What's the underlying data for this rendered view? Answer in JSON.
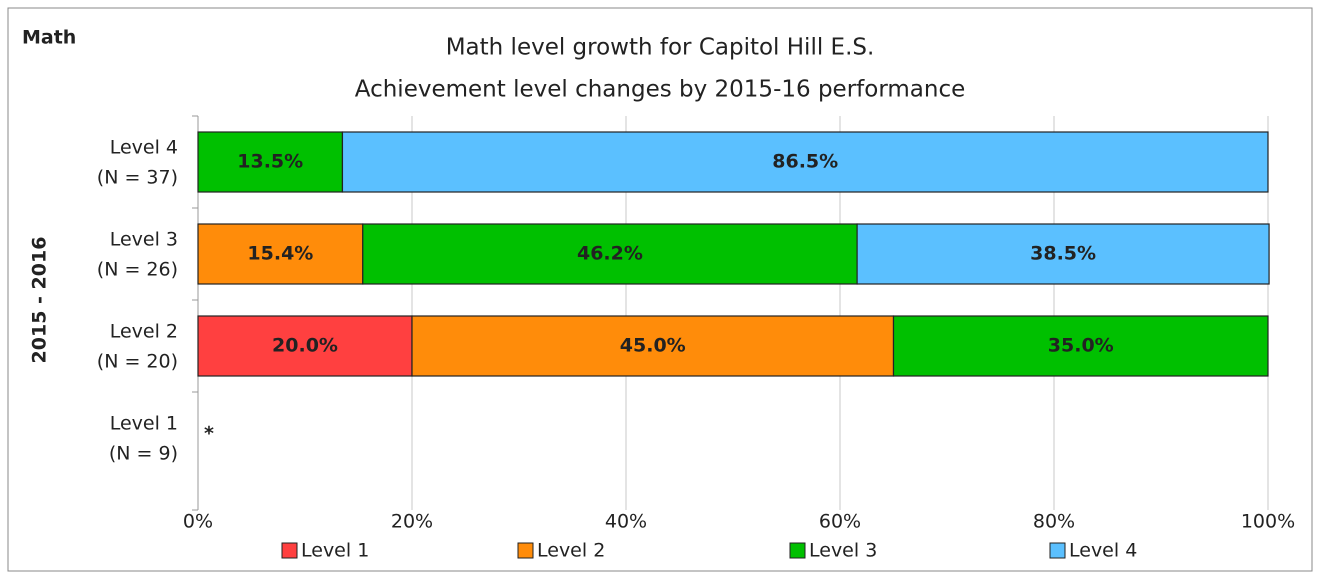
{
  "chart_data": {
    "type": "stacked-barh",
    "panel_label": "Math",
    "title": [
      "Math level growth for Capitol Hill E.S.",
      "Achievement level changes by 2015-16 performance"
    ],
    "ylabel": "2015 - 2016",
    "categories": [
      [
        "Level 4",
        "(N = 37)"
      ],
      [
        "Level 3",
        "(N = 26)"
      ],
      [
        "Level 2",
        "(N = 20)"
      ],
      [
        "Level 1",
        "(N = 9)"
      ]
    ],
    "series": [
      {
        "name": "Level 1",
        "color": "#ff4040",
        "values": [
          null,
          null,
          20.0,
          null
        ],
        "value_labels": [
          null,
          null,
          "20.0%",
          null
        ]
      },
      {
        "name": "Level 2",
        "color": "#ff8c0a",
        "values": [
          null,
          15.4,
          45.0,
          null
        ],
        "value_labels": [
          null,
          "15.4%",
          "45.0%",
          null
        ]
      },
      {
        "name": "Level 3",
        "color": "#00c000",
        "values": [
          13.5,
          46.2,
          35.0,
          null
        ],
        "value_labels": [
          "13.5%",
          "46.2%",
          "35.0%",
          null
        ]
      },
      {
        "name": "Level 4",
        "color": "#5bc0ff",
        "values": [
          86.5,
          38.5,
          null,
          null
        ],
        "value_labels": [
          "86.5%",
          "38.5%",
          null,
          null
        ]
      }
    ],
    "annotations": [
      {
        "category": 3,
        "text": "*"
      }
    ],
    "xlim": [
      0,
      100
    ],
    "xticks": [
      {
        "value": 0,
        "label": "0%"
      },
      {
        "value": 20,
        "label": "20%"
      },
      {
        "value": 40,
        "label": "40%"
      },
      {
        "value": 60,
        "label": "60%"
      },
      {
        "value": 80,
        "label": "80%"
      },
      {
        "value": 100,
        "label": "100%"
      }
    ],
    "grid": true,
    "legend": "bottom"
  }
}
